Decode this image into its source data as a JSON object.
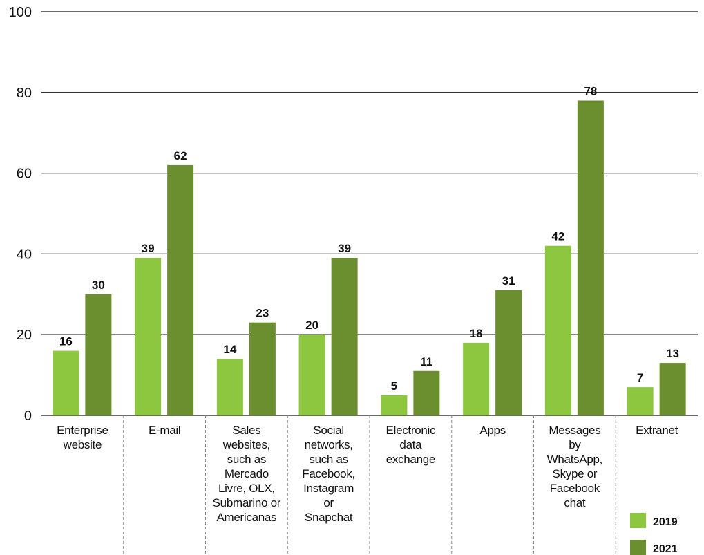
{
  "chart_data": {
    "type": "bar",
    "categories": [
      "Enterprise\nwebsite",
      "E-mail",
      "Sales\nwebsites,\nsuch as\nMercado\nLivre, OLX,\nSubmarino or\nAmericanas",
      "Social\nnetworks,\nsuch as\nFacebook,\nInstagram\nor\nSnapchat",
      "Electronic\ndata\nexchange",
      "Apps",
      "Messages\nby\nWhatsApp,\nSkype or\nFacebook\nchat",
      "Extranet"
    ],
    "series": [
      {
        "name": "2019",
        "color": "#8dc63f",
        "values": [
          16,
          39,
          14,
          20,
          5,
          18,
          42,
          7
        ]
      },
      {
        "name": "2021",
        "color": "#6b8e2f",
        "values": [
          30,
          62,
          23,
          39,
          11,
          31,
          78,
          13
        ]
      }
    ],
    "ylim": [
      0,
      100
    ],
    "yticks": [
      0,
      20,
      40,
      60,
      80,
      100
    ],
    "grid": true,
    "legend": "bottom-right"
  }
}
